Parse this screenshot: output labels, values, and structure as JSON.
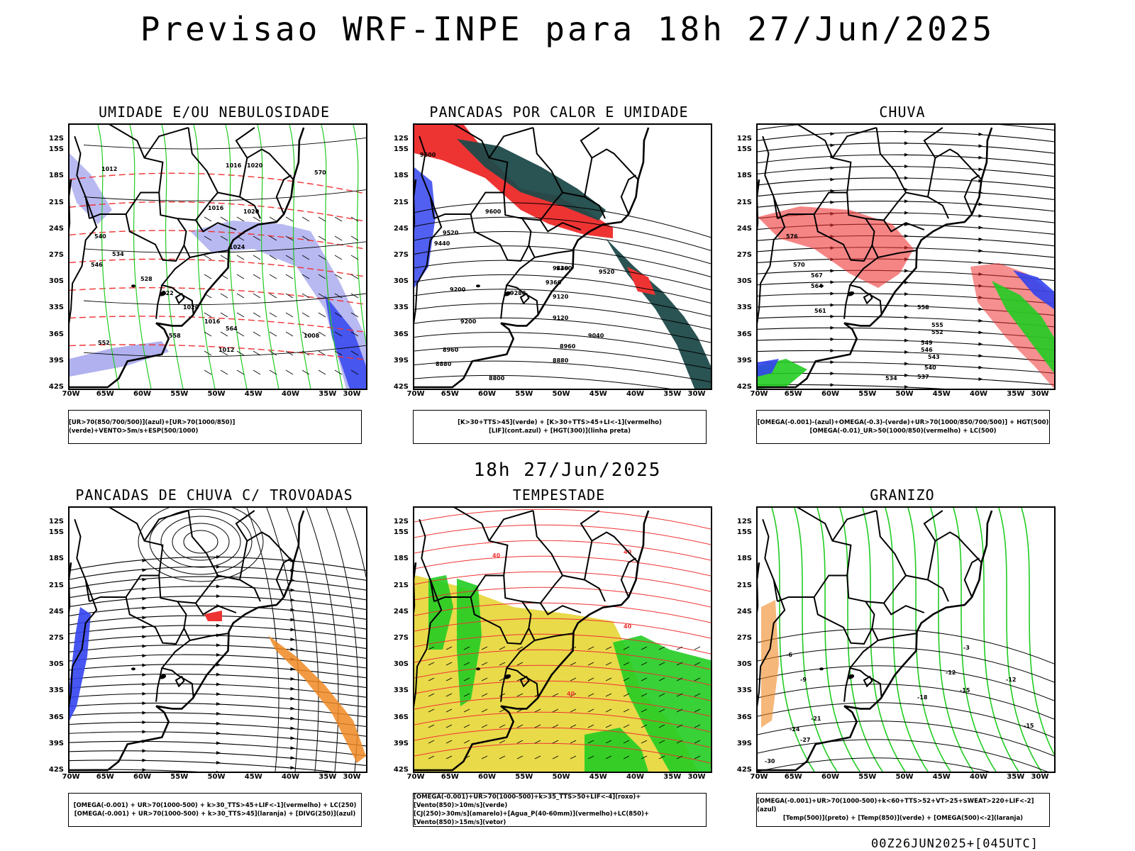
{
  "title": "Previsao WRF-INPE  para 18h 27/Jun/2025",
  "mid_time": "18h 27/Jun/2025",
  "footer_stamp": "00Z26JUN2025+[045UTC]",
  "lat_labels": [
    "12S",
    "15S",
    "18S",
    "21S",
    "24S",
    "27S",
    "30S",
    "33S",
    "36S",
    "39S",
    "42S"
  ],
  "lon_labels": [
    "70W",
    "65W",
    "60W",
    "55W",
    "50W",
    "45W",
    "40W",
    "35W",
    "30W"
  ],
  "colors": {
    "blue": "#3344ee",
    "green": "#22cc22",
    "red": "#ee3333",
    "dark_teal": "#1f4a4a",
    "yellow": "#e8d840",
    "orange": "#ee8822",
    "lavender": "#a8a8ee"
  },
  "panels": [
    {
      "title": "UMIDADE E/OU NEBULOSIDADE",
      "legend": [
        "[UR>70(850/700/500)](azul)+[UR>70(1000/850)](verde)+VENTO>5m/s+ESP(500/1000)"
      ],
      "contour_labels": [
        "1012",
        "1016",
        "1016",
        "1020",
        "1020",
        "1024",
        "570",
        "564",
        "558",
        "552",
        "546",
        "540",
        "534",
        "528",
        "522",
        "1020",
        "1016",
        "1012",
        "1008"
      ]
    },
    {
      "title": "PANCADAS POR CALOR E UMIDADE",
      "legend": [
        "[K>30+TTS>45](verde) + [K>30+TTS>45+LI<-1](vermelho)",
        "[LIF](cont.azul) + [HGT(300)](linha preta)"
      ],
      "contour_labels": [
        "9500",
        "9600",
        "9520",
        "9440",
        "9360",
        "9440",
        "9520",
        "9360",
        "9280",
        "9200",
        "9120",
        "9200",
        "9120",
        "9040",
        "8960",
        "8880",
        "8960",
        "8880",
        "8800"
      ]
    },
    {
      "title": "CHUVA",
      "legend": [
        "[OMEGA(-0.001)-(azul)+OMEGA(-0.3)-(verde)+UR>70(1000/850/700/500)] + HGT(500)",
        "[OMEGA(-0.01)_UR>50(1000/850)(vermelho) + LC(500)"
      ],
      "contour_labels": [
        "576",
        "570",
        "567",
        "564",
        "561",
        "558",
        "555",
        "552",
        "549",
        "546",
        "543",
        "540",
        "537",
        "534"
      ]
    },
    {
      "title": "PANCADAS DE CHUVA C/ TROVOADAS",
      "legend": [
        "[OMEGA(-0.001) + UR>70(1000-500) + k>30_TTS>45+LIF<-1](vermelho) + LC(250)",
        "[OMEGA(-0.001) + UR>70(1000-500) + k>30_TTS>45](laranja) + [DIVG(250)](azul)"
      ],
      "contour_labels": []
    },
    {
      "title": "TEMPESTADE",
      "legend": [
        "[OMEGA(-0.001)+UR>70(1000-500)+k>35_TTS>50+LIF<-4](roxo)+[Vento(850)>10m/s](verde)",
        "[CJ(250)>30m/s](amarelo)+[Agua_P(40-60mm)](vermelho)+LC(850)+[Vento(850)>15m/s](vetor)"
      ],
      "contour_labels": [
        "40",
        "40",
        "40",
        "40"
      ]
    },
    {
      "title": "GRANIZO",
      "legend": [
        "[OMEGA(-0.001)+UR>70(1000-500)+k<60+TTS>52+VT>25+SWEAT>220+LIF<-2](azul)",
        "[Temp(500)](preto) + [Temp(850)](verde) + [OMEGA(500)<-2](laranja)"
      ],
      "contour_labels": [
        "-3",
        "-6",
        "-9",
        "-12",
        "-15",
        "-18",
        "-21",
        "-24",
        "-27",
        "-30",
        "-15",
        "-12"
      ]
    }
  ]
}
